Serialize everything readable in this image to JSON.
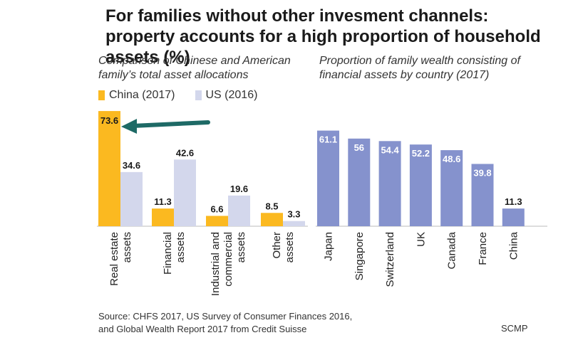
{
  "title": "For families without other invesment channels: property accounts for a high proportion of household assets (%)",
  "source": {
    "line1": "Source: CHFS 2017, US Survey of Consumer Finances 2016,",
    "line2": "and Global Wealth Report 2017 from Credit Suisse"
  },
  "credit": "SCMP",
  "colors": {
    "china": "#fbb920",
    "us": "#d3d7ec",
    "country": "#8592cd",
    "arrow": "#1e6a66"
  },
  "chart_data": [
    {
      "type": "bar",
      "title": "Comparison of Chinese and American family’s total asset allocations",
      "categories": [
        [
          "Real estate",
          "assets"
        ],
        [
          "Financial",
          "assets"
        ],
        [
          "Industrial and",
          "commercial",
          "assets"
        ],
        [
          "Other",
          "assets"
        ]
      ],
      "series": [
        {
          "name": "China (2017)",
          "values": [
            73.6,
            11.3,
            6.6,
            8.5
          ]
        },
        {
          "name": "US (2016)",
          "values": [
            34.6,
            42.6,
            19.6,
            3.3
          ]
        }
      ],
      "legend": "top-left",
      "grid": false
    },
    {
      "type": "bar",
      "title": "Proportion of family wealth consisting of financial assets by country (2017)",
      "categories": [
        "Japan",
        "Singapore",
        "Switzerland",
        "UK",
        "Canada",
        "France",
        "China"
      ],
      "values": [
        61.1,
        56,
        54.4,
        52.2,
        48.6,
        39.8,
        11.3
      ],
      "grid": false
    }
  ]
}
